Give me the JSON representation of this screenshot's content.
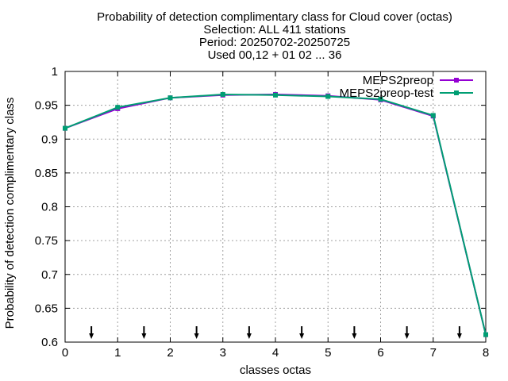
{
  "chart_data": {
    "type": "line",
    "title_lines": [
      "Probability of detection complimentary class  for Cloud cover (octas)",
      "Selection: ALL    411 stations",
      "Period: 20250702-20250725",
      "Used 00,12 + 01 02 ... 36"
    ],
    "xlabel": "classes octas",
    "ylabel": "Probability of detection complimentary class",
    "xlim": [
      0,
      8
    ],
    "ylim": [
      0.6,
      1.0
    ],
    "xticks": [
      0,
      1,
      2,
      3,
      4,
      5,
      6,
      7,
      8
    ],
    "yticks": [
      0.6,
      0.65,
      0.7,
      0.75,
      0.8,
      0.85,
      0.9,
      0.95,
      1.0
    ],
    "ytick_labels": [
      "0.6",
      "0.65",
      "0.7",
      "0.75",
      "0.8",
      "0.85",
      "0.9",
      "0.95",
      "1"
    ],
    "grid": true,
    "legend_position": "top-right",
    "series": [
      {
        "name": "MEPS2preop",
        "color": "#9400d3",
        "x": [
          0,
          1,
          2,
          3,
          4,
          5,
          6,
          7,
          8
        ],
        "values": [
          0.916,
          0.945,
          0.961,
          0.965,
          0.966,
          0.964,
          0.958,
          0.934,
          0.611
        ]
      },
      {
        "name": "MEPS2preop-test",
        "color": "#009e73",
        "x": [
          0,
          1,
          2,
          3,
          4,
          5,
          6,
          7,
          8
        ],
        "values": [
          0.916,
          0.947,
          0.961,
          0.966,
          0.965,
          0.963,
          0.959,
          0.935,
          0.611
        ]
      }
    ],
    "arrow_markers_x": [
      0.5,
      1.5,
      2.5,
      3.5,
      4.5,
      5.5,
      6.5,
      7.5
    ]
  }
}
